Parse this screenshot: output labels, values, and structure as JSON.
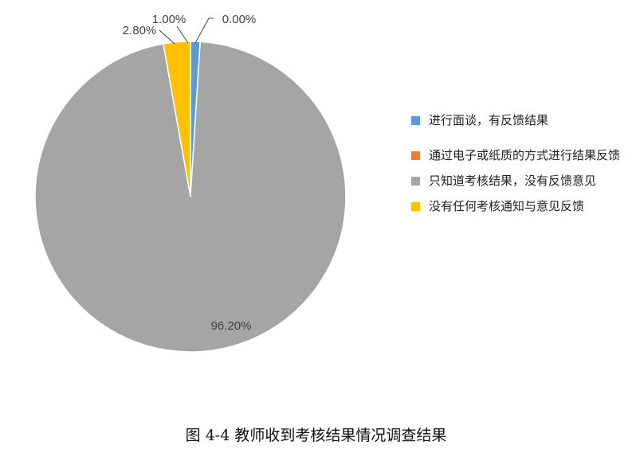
{
  "chart_data": {
    "type": "pie",
    "categories": [
      "进行面谈，有反馈结果",
      "通过电子或纸质的方式进行结果反馈",
      "只知道考核结果，没有反馈意见",
      "没有任何考核通知与意见反馈"
    ],
    "values": [
      1.0,
      0.0,
      96.2,
      2.8
    ],
    "data_labels": [
      "1.00%",
      "0.00%",
      "96.20%",
      "2.80%"
    ],
    "colors": [
      "#5B9BD5",
      "#ED7D31",
      "#A5A5A5",
      "#FFC000"
    ],
    "legend_position": "right",
    "title": ""
  },
  "legend": {
    "items": [
      {
        "label": "进行面谈，有反馈结果",
        "color": "#5B9BD5"
      },
      {
        "label": "通过电子或纸质的方式进行结果反馈",
        "color": "#ED7D31"
      },
      {
        "label": "只知道考核结果，没有反馈意见",
        "color": "#A5A5A5"
      },
      {
        "label": "没有任何考核通知与意见反馈",
        "color": "#FFC000"
      }
    ]
  },
  "caption": "图 4-4  教师收到考核结果情况调查结果"
}
